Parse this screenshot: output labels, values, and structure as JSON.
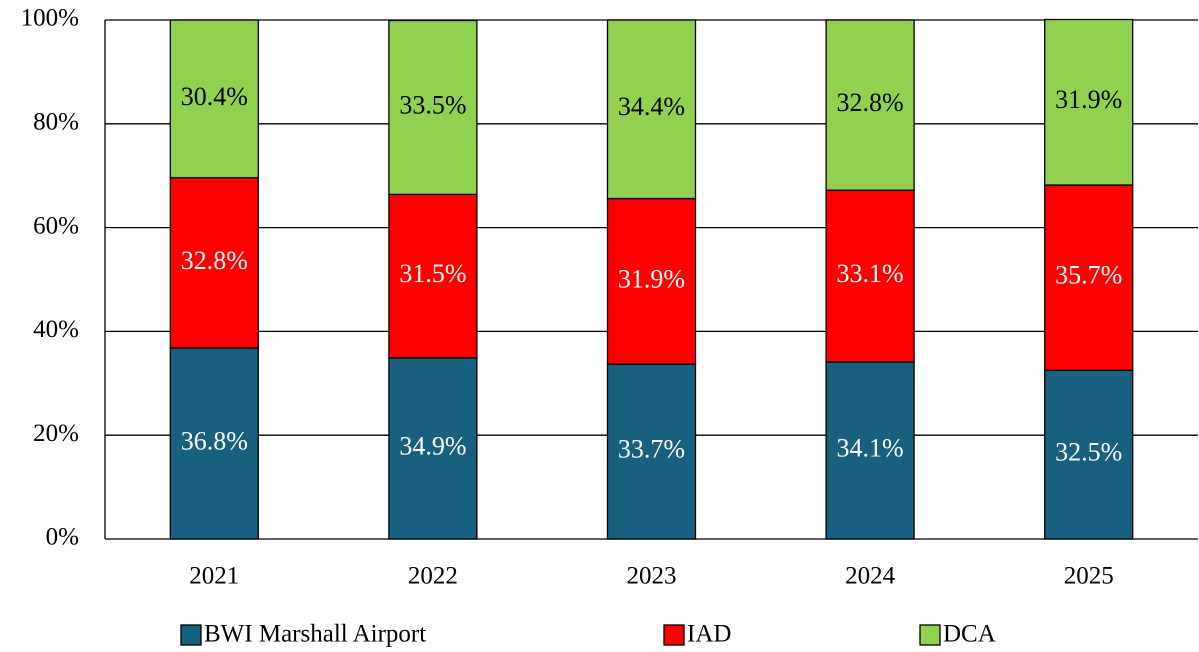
{
  "chart_data": {
    "type": "stacked_bar",
    "categories": [
      "2021",
      "2022",
      "2023",
      "2024",
      "2025"
    ],
    "series": [
      {
        "name": "BWI Marshall Airport",
        "color": "#17607f",
        "label_color": "#ffffff",
        "values": [
          36.8,
          34.9,
          33.7,
          34.1,
          32.5
        ],
        "value_labels": [
          "36.8%",
          "34.9%",
          "33.7%",
          "34.1%",
          "32.5%"
        ]
      },
      {
        "name": "IAD",
        "color": "#ff0000",
        "label_color": "#ffffff",
        "values": [
          32.8,
          31.5,
          31.9,
          33.1,
          35.7
        ],
        "value_labels": [
          "32.8%",
          "31.5%",
          "31.9%",
          "33.1%",
          "35.7%"
        ]
      },
      {
        "name": "DCA",
        "color": "#92d050",
        "label_color": "#000000",
        "values": [
          30.4,
          33.5,
          34.4,
          32.8,
          31.9
        ],
        "value_labels": [
          "30.4%",
          "33.5%",
          "34.4%",
          "32.8%",
          "31.9%"
        ]
      }
    ],
    "ylim": [
      0,
      100
    ],
    "yticks": [
      {
        "value": 0,
        "label": "0%"
      },
      {
        "value": 20,
        "label": "20%"
      },
      {
        "value": 40,
        "label": "40%"
      },
      {
        "value": 60,
        "label": "60%"
      },
      {
        "value": 80,
        "label": "80%"
      },
      {
        "value": 100,
        "label": "100%"
      }
    ],
    "grid": true,
    "legend": "bottom"
  }
}
